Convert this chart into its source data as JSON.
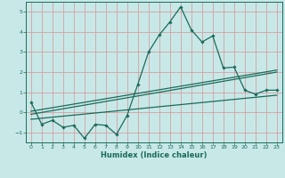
{
  "xlabel": "Humidex (Indice chaleur)",
  "background_color": "#c8e8e8",
  "grid_color": "#d4a0a0",
  "line_color": "#1a6b5a",
  "xlim": [
    -0.5,
    23.5
  ],
  "ylim": [
    -1.5,
    5.5
  ],
  "xticks": [
    0,
    1,
    2,
    3,
    4,
    5,
    6,
    7,
    8,
    9,
    10,
    11,
    12,
    13,
    14,
    15,
    16,
    17,
    18,
    19,
    20,
    21,
    22,
    23
  ],
  "yticks": [
    -1,
    0,
    1,
    2,
    3,
    4,
    5
  ],
  "main_x": [
    0,
    1,
    2,
    3,
    4,
    5,
    6,
    7,
    8,
    9,
    10,
    11,
    12,
    13,
    14,
    15,
    16,
    17,
    18,
    19,
    20,
    21,
    22,
    23
  ],
  "main_y": [
    0.5,
    -0.6,
    -0.4,
    -0.75,
    -0.65,
    -1.3,
    -0.6,
    -0.65,
    -1.1,
    -0.15,
    1.4,
    3.0,
    3.85,
    4.5,
    5.25,
    4.1,
    3.5,
    3.8,
    2.2,
    2.25,
    1.1,
    0.9,
    1.1,
    1.1
  ],
  "line1_x": [
    0,
    23
  ],
  "line1_y": [
    0.05,
    2.1
  ],
  "line2_x": [
    0,
    23
  ],
  "line2_y": [
    -0.1,
    2.0
  ],
  "line3_x": [
    0,
    23
  ],
  "line3_y": [
    -0.35,
    0.85
  ]
}
